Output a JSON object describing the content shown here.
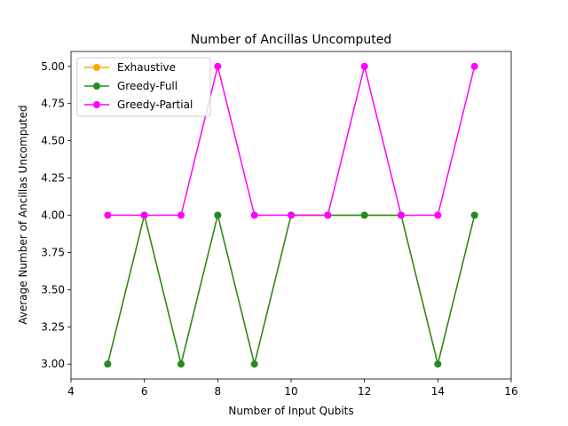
{
  "chart_data": {
    "type": "line",
    "title": "Number of Ancillas Uncomputed",
    "xlabel": "Number of Input Qubits",
    "ylabel": "Average Number of Ancillas Uncomputed",
    "xlim": [
      4,
      16
    ],
    "ylim": [
      2.9,
      5.1
    ],
    "xticks": [
      4,
      6,
      8,
      10,
      12,
      14,
      16
    ],
    "yticks": [
      "3.00",
      "3.25",
      "3.50",
      "3.75",
      "4.00",
      "4.25",
      "4.50",
      "4.75",
      "5.00"
    ],
    "grid": false,
    "legend_position": "top-left",
    "x": [
      5,
      6,
      7,
      8,
      9,
      10,
      11,
      12,
      13,
      14,
      15
    ],
    "series": [
      {
        "name": "Exhaustive",
        "color": "#ffa500",
        "values": [
          3,
          4,
          3,
          4,
          3,
          4,
          4,
          4,
          4,
          3,
          4
        ]
      },
      {
        "name": "Greedy-Full",
        "color": "#228b22",
        "values": [
          3,
          4,
          3,
          4,
          3,
          4,
          4,
          4,
          4,
          3,
          4
        ]
      },
      {
        "name": "Greedy-Partial",
        "color": "#ff00ff",
        "values": [
          4,
          4,
          4,
          5,
          4,
          4,
          4,
          5,
          4,
          4,
          5
        ]
      }
    ]
  }
}
